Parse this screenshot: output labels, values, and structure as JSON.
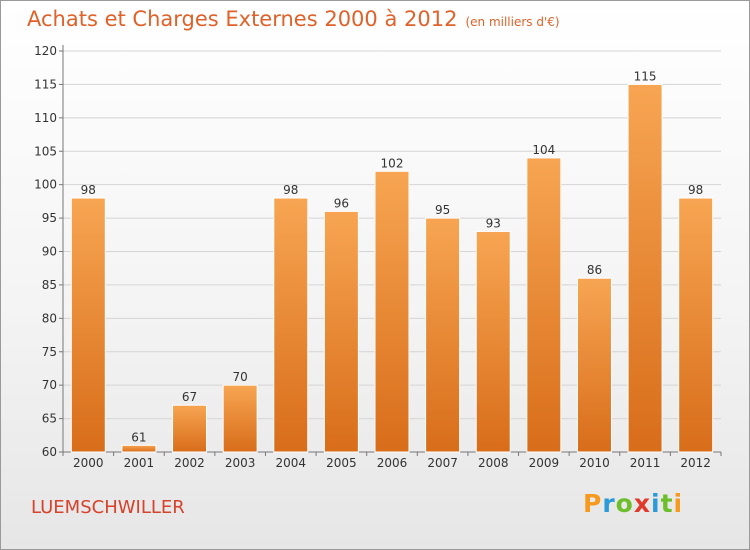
{
  "chart_data": {
    "type": "bar",
    "title": "Achats et Charges Externes 2000 à 2012",
    "subtitle": "(en milliers d'€)",
    "categories": [
      "2000",
      "2001",
      "2002",
      "2003",
      "2004",
      "2005",
      "2006",
      "2007",
      "2008",
      "2009",
      "2010",
      "2011",
      "2012"
    ],
    "values": [
      98,
      61,
      67,
      70,
      98,
      96,
      102,
      95,
      93,
      104,
      86,
      115,
      98
    ],
    "value_labels": [
      "98",
      "61",
      "67",
      "70",
      "98",
      "96",
      "102",
      "95",
      "93",
      "104",
      "86",
      "115",
      "98"
    ],
    "ylim": [
      60,
      120
    ],
    "yticks": [
      60,
      65,
      70,
      75,
      80,
      85,
      90,
      95,
      100,
      105,
      110,
      115,
      120
    ],
    "ytick_labels": [
      "60",
      "65",
      "70",
      "75",
      "80",
      "85",
      "90",
      "95",
      "100",
      "105",
      "110",
      "115",
      "120"
    ],
    "grid": true,
    "bar_color_top": "#f7a552",
    "bar_color_bottom": "#d86d1a"
  },
  "location": "LUEMSCHWILLER",
  "logo": {
    "text": "Proxiti",
    "letters": [
      "P",
      "r",
      "o",
      "x",
      "i",
      "t",
      "i"
    ],
    "colors": [
      "#f59a1f",
      "#2a9ad8",
      "#6cbf2a",
      "#e23a2a",
      "#2a9ad8",
      "#6cbf2a",
      "#f59a1f"
    ]
  }
}
